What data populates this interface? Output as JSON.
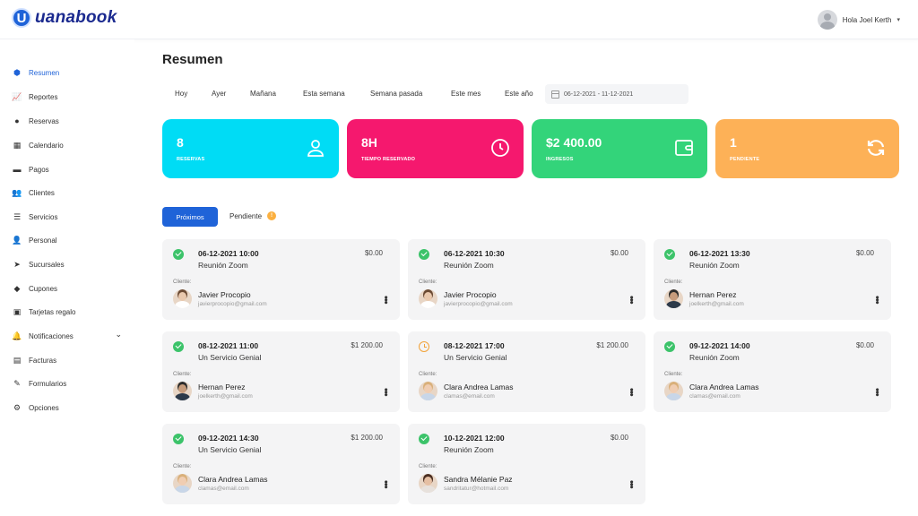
{
  "header": {
    "logo_letter": "U",
    "logo_text": "uanabook",
    "user_greeting": "Hola Joel Kerth",
    "user_caret": "▾"
  },
  "sidebar": {
    "items": [
      {
        "label": "Resumen",
        "icon": "cube-icon",
        "glyph": "⬢",
        "active": true
      },
      {
        "label": "Reportes",
        "icon": "chart-line-icon",
        "glyph": "📈"
      },
      {
        "label": "Reservas",
        "icon": "clock-icon",
        "glyph": "●"
      },
      {
        "label": "Calendario",
        "icon": "calendar-icon",
        "glyph": "▦"
      },
      {
        "label": "Pagos",
        "icon": "wallet-icon",
        "glyph": "▬"
      },
      {
        "label": "Clientes",
        "icon": "users-icon",
        "glyph": "👥"
      },
      {
        "label": "Servicios",
        "icon": "list-icon",
        "glyph": "☰"
      },
      {
        "label": "Personal",
        "icon": "user-icon",
        "glyph": "👤"
      },
      {
        "label": "Sucursales",
        "icon": "location-arrow-icon",
        "glyph": "➤"
      },
      {
        "label": "Cupones",
        "icon": "tag-icon",
        "glyph": "◆"
      },
      {
        "label": "Tarjetas regalo",
        "icon": "gift-icon",
        "glyph": "▣"
      },
      {
        "label": "Notificaciones",
        "icon": "bell-icon",
        "glyph": "🔔",
        "chevron": "⌄"
      },
      {
        "label": "Facturas",
        "icon": "invoice-icon",
        "glyph": "▤"
      },
      {
        "label": "Formularios",
        "icon": "pen-icon",
        "glyph": "✎"
      },
      {
        "label": "Opciones",
        "icon": "gear-icon",
        "glyph": "⚙"
      }
    ]
  },
  "main": {
    "title": "Resumen",
    "filters": [
      "Hoy",
      "Ayer",
      "Mañana",
      "Esta semana",
      "Semana pasada",
      "Este mes",
      "Este año"
    ],
    "date_range": "06-12-2021 - 11-12-2021",
    "stats": [
      {
        "value": "8",
        "label": "RESERVAS",
        "color": "#00dcf5",
        "icon": "user-outline-icon"
      },
      {
        "value": "8H",
        "label": "TIEMPO RESERVADO",
        "color": "#f5186e",
        "icon": "clock-outline-icon"
      },
      {
        "value": "$2 400.00",
        "label": "INGRESOS",
        "color": "#33d47a",
        "icon": "wallet-outline-icon"
      },
      {
        "value": "1",
        "label": "PENDIENTE",
        "color": "#fdb157",
        "icon": "refresh-icon"
      }
    ],
    "tabs": {
      "active": "Próximos",
      "other": "Pendiente",
      "badge": "!"
    },
    "client_label": "Cliente:",
    "appointments": [
      {
        "datetime": "06-12-2021 10:00",
        "service": "Reunión Zoom",
        "price": "$0.00",
        "status": "ok",
        "client": "Javier Procopio",
        "email": "javierprocopio@gmail.com",
        "avatar": "man-light"
      },
      {
        "datetime": "06-12-2021 10:30",
        "service": "Reunión Zoom",
        "price": "$0.00",
        "status": "ok",
        "client": "Javier Procopio",
        "email": "javierprocopio@gmail.com",
        "avatar": "man-light"
      },
      {
        "datetime": "06-12-2021 13:30",
        "service": "Reunión Zoom",
        "price": "$0.00",
        "status": "ok",
        "client": "Hernan Perez",
        "email": "joelkerth@gmail.com",
        "avatar": "man-dark"
      },
      {
        "datetime": "08-12-2021 11:00",
        "service": "Un Servicio Genial",
        "price": "$1 200.00",
        "status": "ok",
        "client": "Hernan Perez",
        "email": "joelkerth@gmail.com",
        "avatar": "man-dark"
      },
      {
        "datetime": "08-12-2021 17:00",
        "service": "Un Servicio Genial",
        "price": "$1 200.00",
        "status": "clock",
        "client": "Clara Andrea Lamas",
        "email": "clamas@email.com",
        "avatar": "woman-blonde"
      },
      {
        "datetime": "09-12-2021 14:00",
        "service": "Reunión Zoom",
        "price": "$0.00",
        "status": "ok",
        "client": "Clara Andrea Lamas",
        "email": "clamas@email.com",
        "avatar": "woman-blonde"
      },
      {
        "datetime": "09-12-2021 14:30",
        "service": "Un Servicio Genial",
        "price": "$1 200.00",
        "status": "ok",
        "client": "Clara Andrea Lamas",
        "email": "clamas@email.com",
        "avatar": "woman-blonde"
      },
      {
        "datetime": "10-12-2021 12:00",
        "service": "Reunión Zoom",
        "price": "$0.00",
        "status": "ok",
        "client": "Sandra Mélanie Paz",
        "email": "sandritatur@hotmail.com",
        "avatar": "woman-brunette"
      }
    ]
  },
  "colors": {
    "accent": "#1f63d8",
    "success": "#3cc36a",
    "warning": "#f2a33a"
  }
}
